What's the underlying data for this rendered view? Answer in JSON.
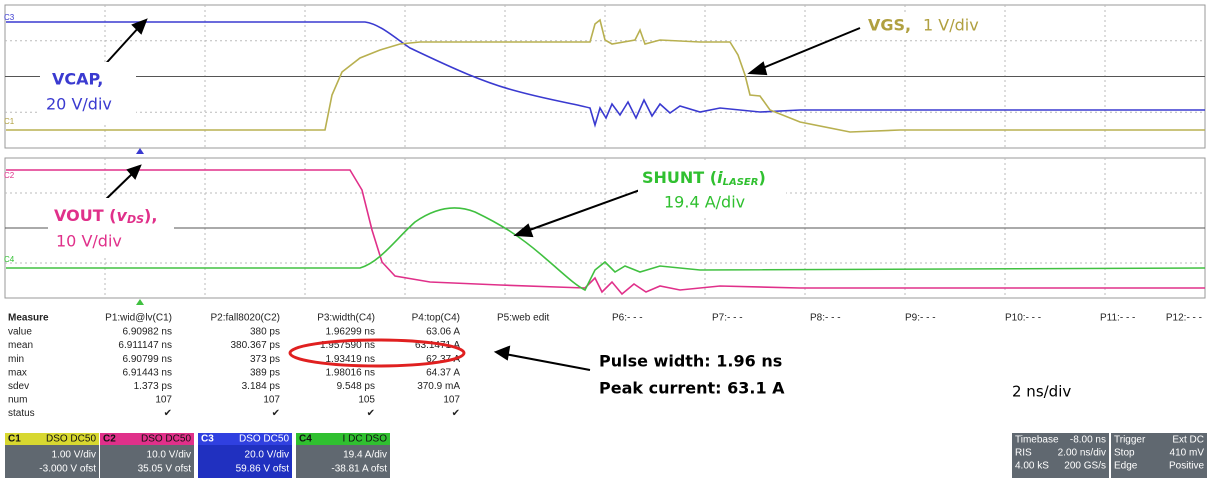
{
  "annotations": {
    "vcap_name": "VCAP,",
    "vcap_scale": "20 V/div",
    "vgs_name": "VGS,",
    "vgs_scale": "1 V/div",
    "vout_name": "VOUT (",
    "vout_sym": "v",
    "vout_sub": "DS",
    "vout_end": "),",
    "vout_scale": "10 V/div",
    "shunt_name": "SHUNT (",
    "shunt_sym": "i",
    "shunt_sub": "LASER",
    "shunt_end": ")",
    "shunt_scale": "19.4 A/div",
    "pulse_width": "Pulse width: 1.96 ns",
    "peak_current": "Peak current: 63.1 A",
    "timebase": "2 ns/div"
  },
  "trace_labels": [
    "C3",
    "C1",
    "C2",
    "C4"
  ],
  "measure": {
    "header": [
      "Measure",
      "P1:wid@lv(C1)",
      "P2:fall8020(C2)",
      "P3:width(C4)",
      "P4:top(C4)",
      "P5:web edit",
      "P6:- - -",
      "P7:- - -",
      "P8:- - -",
      "P9:- - -",
      "P10:- - -",
      "P11:- - -",
      "P12:- - -"
    ],
    "rows": [
      [
        "value",
        "6.90982 ns",
        "380 ps",
        "1.96299 ns",
        "63.06 A"
      ],
      [
        "mean",
        "6.911147 ns",
        "380.367 ps",
        "1.957590 ns",
        "63.1471 A"
      ],
      [
        "min",
        "6.90799 ns",
        "373 ps",
        "1.93419 ns",
        "62.37 A"
      ],
      [
        "max",
        "6.91443 ns",
        "389 ps",
        "1.98016 ns",
        "64.37 A"
      ],
      [
        "sdev",
        "1.373 ps",
        "3.184 ps",
        "9.548 ps",
        "370.9 mA"
      ],
      [
        "num",
        "107",
        "107",
        "105",
        "107"
      ],
      [
        "status",
        "✔",
        "✔",
        "✔",
        "✔"
      ]
    ]
  },
  "channels": [
    {
      "label": "C1",
      "tags": "DSO DC50",
      "scale": "1.00 V/div",
      "offset": "-3.000 V ofst"
    },
    {
      "label": "C2",
      "tags": "DSO DC50",
      "scale": "10.0 V/div",
      "offset": "35.05 V ofst"
    },
    {
      "label": "C3",
      "tags": "DSO DC50",
      "scale": "20.0 V/div",
      "offset": "59.86 V ofst"
    },
    {
      "label": "C4",
      "tags": "I DC DSO",
      "scale": "19.4 A/div",
      "offset": "-38.81 A ofst"
    }
  ],
  "timebase": {
    "title": "Timebase",
    "delay": "-8.00 ns",
    "mode": "RIS",
    "div": "2.00 ns/div",
    "samples": "4.00 kS",
    "rate": "200 GS/s"
  },
  "trigger": {
    "title": "Trigger",
    "tags": "Ext DC",
    "state": "Stop",
    "level": "410 mV",
    "type": "Edge",
    "slope": "Positive"
  }
}
